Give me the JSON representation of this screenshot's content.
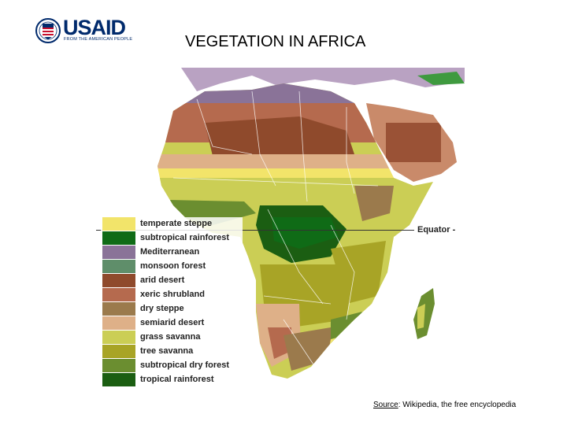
{
  "logo": {
    "text": "USAID",
    "tagline": "FROM THE AMERICAN PEOPLE"
  },
  "title": "VEGETATION IN AFRICA",
  "map": {
    "equator_label": "Equator",
    "legend": [
      {
        "label": "temperate steppe",
        "color": "#f2e46a"
      },
      {
        "label": "subtropical rainforest",
        "color": "#0f6b16"
      },
      {
        "label": "Mediterranean",
        "color": "#8a7398"
      },
      {
        "label": "monsoon forest",
        "color": "#5f8e6a"
      },
      {
        "label": "arid desert",
        "color": "#8f4a2c"
      },
      {
        "label": "xeric shrubland",
        "color": "#b56a4e"
      },
      {
        "label": "dry steppe",
        "color": "#9b7a4c"
      },
      {
        "label": "semiarid desert",
        "color": "#deb088"
      },
      {
        "label": "grass savanna",
        "color": "#cbce55"
      },
      {
        "label": "tree savanna",
        "color": "#a8a426"
      },
      {
        "label": "subtropical dry forest",
        "color": "#6b8e30"
      },
      {
        "label": "tropical rainforest",
        "color": "#1b5e12"
      }
    ]
  },
  "source": {
    "prefix": "Source",
    "text": ": Wikipedia, the free encyclopedia"
  }
}
